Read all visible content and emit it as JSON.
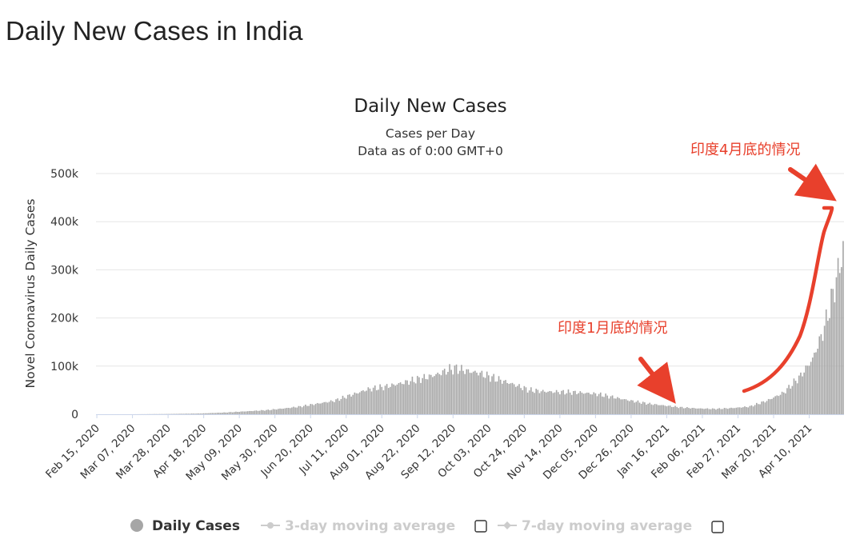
{
  "page": {
    "title": "Daily New Cases in India"
  },
  "chart_data": {
    "type": "bar",
    "title": "Daily New Cases",
    "subtitle_lines": [
      "Cases per Day",
      "Data as of 0:00 GMT+0"
    ],
    "ylabel": "Novel Coronavirus Daily Cases",
    "xlabel": "",
    "ylim": [
      0,
      500000
    ],
    "ytick_values": [
      0,
      100000,
      200000,
      300000,
      400000,
      500000
    ],
    "ytick_labels": [
      "0",
      "100k",
      "200k",
      "300k",
      "400k",
      "500k"
    ],
    "grid": true,
    "x_start": "Feb 15, 2020",
    "x_end": "Apr 30, 2021",
    "x_tick_labels": [
      "Feb 15, 2020",
      "Mar 07, 2020",
      "Mar 28, 2020",
      "Apr 18, 2020",
      "May 09, 2020",
      "May 30, 2020",
      "Jun 20, 2020",
      "Jul 11, 2020",
      "Aug 01, 2020",
      "Aug 22, 2020",
      "Sep 12, 2020",
      "Oct 03, 2020",
      "Oct 24, 2020",
      "Nov 14, 2020",
      "Dec 05, 2020",
      "Dec 26, 2020",
      "Jan 16, 2021",
      "Feb 06, 2021",
      "Feb 27, 2021",
      "Mar 20, 2021",
      "Apr 10, 2021"
    ],
    "series": [
      {
        "name": "Daily Cases",
        "color": "#a6a6a6",
        "anchors_day_value": [
          [
            0,
            0
          ],
          [
            20,
            20
          ],
          [
            40,
            500
          ],
          [
            60,
            1500
          ],
          [
            75,
            3500
          ],
          [
            90,
            6500
          ],
          [
            100,
            8500
          ],
          [
            110,
            12000
          ],
          [
            120,
            16000
          ],
          [
            130,
            22000
          ],
          [
            140,
            28000
          ],
          [
            150,
            40000
          ],
          [
            160,
            52000
          ],
          [
            170,
            57000
          ],
          [
            180,
            65000
          ],
          [
            190,
            73000
          ],
          [
            200,
            82000
          ],
          [
            208,
            93000
          ],
          [
            212,
            95000
          ],
          [
            218,
            90000
          ],
          [
            225,
            86000
          ],
          [
            235,
            74000
          ],
          [
            245,
            63000
          ],
          [
            255,
            50000
          ],
          [
            265,
            47000
          ],
          [
            275,
            46000
          ],
          [
            285,
            45000
          ],
          [
            295,
            42000
          ],
          [
            305,
            35000
          ],
          [
            315,
            28000
          ],
          [
            325,
            22000
          ],
          [
            335,
            18000
          ],
          [
            345,
            14000
          ],
          [
            355,
            12000
          ],
          [
            365,
            11000
          ],
          [
            375,
            13000
          ],
          [
            385,
            16000
          ],
          [
            395,
            28000
          ],
          [
            405,
            45000
          ],
          [
            415,
            80000
          ],
          [
            422,
            115000
          ],
          [
            428,
            170000
          ],
          [
            432,
            220000
          ],
          [
            436,
            280000
          ],
          [
            440,
            340000
          ],
          [
            444,
            365000
          ],
          [
            447,
            385000
          ]
        ]
      }
    ],
    "legend": [
      {
        "label": "Daily Cases",
        "state": "active"
      },
      {
        "label": "3-day moving average",
        "state": "inactive"
      },
      {
        "label": "7-day moving average",
        "state": "inactive"
      }
    ],
    "annotations": [
      {
        "text": "印度4月底的情况",
        "color": "#e8402c"
      },
      {
        "text": "印度1月底的情况",
        "color": "#e8402c"
      }
    ]
  }
}
